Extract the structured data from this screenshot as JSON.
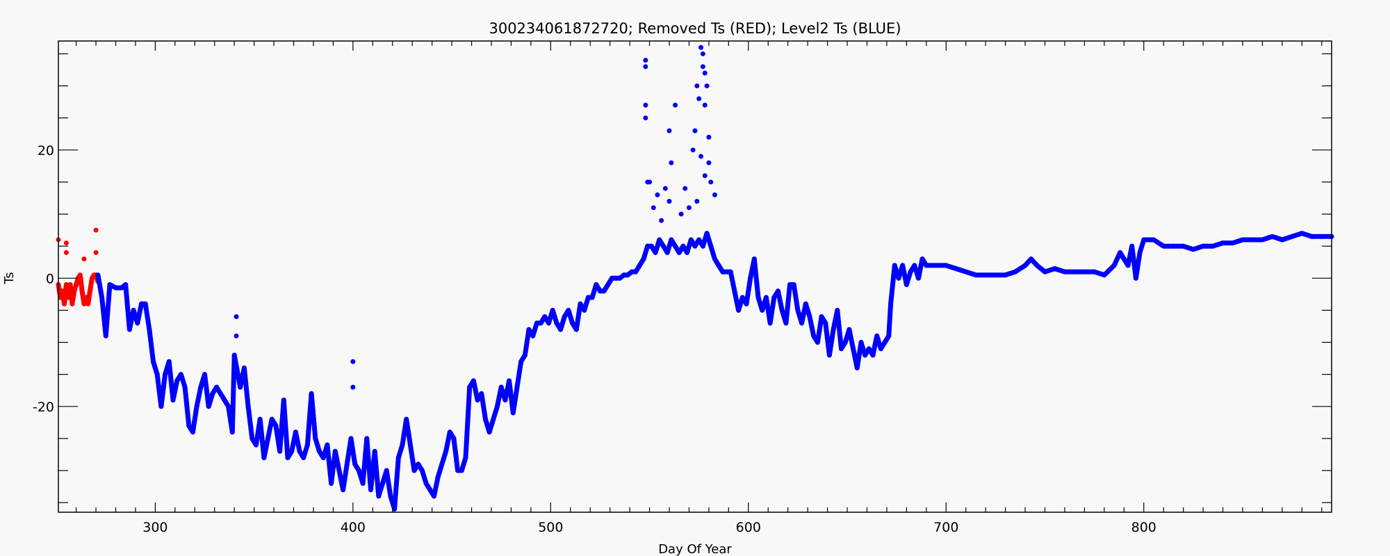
{
  "chart_data": {
    "type": "scatter",
    "title": "300234061872720; Removed Ts (RED); Level2 Ts (BLUE)",
    "xlabel": "Day Of Year",
    "ylabel": "Ts",
    "xlim": [
      251,
      895
    ],
    "ylim": [
      -36.5,
      37
    ],
    "x_ticks": [
      300,
      400,
      500,
      600,
      700,
      800
    ],
    "x_tick_labels": [
      "300",
      "400",
      "500",
      "600",
      "700",
      "800"
    ],
    "y_ticks": [
      -20,
      0,
      20
    ],
    "y_tick_labels": [
      "-20",
      "0",
      "20"
    ],
    "grid": false,
    "legend": "none",
    "colors": {
      "removed": "#ff0000",
      "level2": "#0000ff",
      "axes": "#000000",
      "background": "#f8f8f8"
    },
    "series": [
      {
        "key": "removed",
        "color": "#ff0000",
        "points": [
          [
            251,
            -1
          ],
          [
            252,
            -3
          ],
          [
            253,
            -2
          ],
          [
            254,
            -4
          ],
          [
            255,
            -1
          ],
          [
            256,
            -3
          ],
          [
            257,
            -1
          ],
          [
            258,
            -4
          ],
          [
            259,
            -2
          ],
          [
            260,
            -1
          ],
          [
            261,
            0
          ],
          [
            262,
            0.5
          ],
          [
            263,
            -2
          ],
          [
            264,
            -4
          ],
          [
            265,
            -3
          ],
          [
            266,
            -4
          ],
          [
            267,
            -2
          ],
          [
            268,
            0
          ],
          [
            269,
            0.5
          ],
          [
            270,
            0.5
          ],
          [
            271,
            -0.5
          ]
        ],
        "outliers": [
          [
            251,
            6
          ],
          [
            255,
            5.5
          ],
          [
            255,
            4
          ],
          [
            264,
            3
          ],
          [
            270,
            7.5
          ],
          [
            270,
            4
          ]
        ]
      },
      {
        "key": "level2",
        "color": "#0000ff",
        "points": [
          [
            271,
            0.5
          ],
          [
            273,
            -3
          ],
          [
            275,
            -9
          ],
          [
            277,
            -1
          ],
          [
            280,
            -1.5
          ],
          [
            283,
            -1.5
          ],
          [
            285,
            -1
          ],
          [
            287,
            -8
          ],
          [
            289,
            -5
          ],
          [
            291,
            -7
          ],
          [
            293,
            -4
          ],
          [
            295,
            -4
          ],
          [
            297,
            -8
          ],
          [
            299,
            -13
          ],
          [
            301,
            -15
          ],
          [
            303,
            -20
          ],
          [
            305,
            -15
          ],
          [
            307,
            -13
          ],
          [
            309,
            -19
          ],
          [
            311,
            -16
          ],
          [
            313,
            -15
          ],
          [
            315,
            -17
          ],
          [
            317,
            -23
          ],
          [
            319,
            -24
          ],
          [
            321,
            -20
          ],
          [
            323,
            -17
          ],
          [
            325,
            -15
          ],
          [
            327,
            -20
          ],
          [
            329,
            -18
          ],
          [
            331,
            -17
          ],
          [
            333,
            -18
          ],
          [
            335,
            -19
          ],
          [
            337,
            -20
          ],
          [
            339,
            -24
          ],
          [
            340,
            -12
          ],
          [
            343,
            -17
          ],
          [
            345,
            -14
          ],
          [
            347,
            -20
          ],
          [
            349,
            -25
          ],
          [
            351,
            -26
          ],
          [
            353,
            -22
          ],
          [
            355,
            -28
          ],
          [
            357,
            -25
          ],
          [
            359,
            -22
          ],
          [
            361,
            -23
          ],
          [
            363,
            -27
          ],
          [
            365,
            -19
          ],
          [
            367,
            -28
          ],
          [
            369,
            -27
          ],
          [
            371,
            -24
          ],
          [
            373,
            -27
          ],
          [
            375,
            -28
          ],
          [
            377,
            -26
          ],
          [
            379,
            -18
          ],
          [
            381,
            -25
          ],
          [
            383,
            -27
          ],
          [
            385,
            -28
          ],
          [
            387,
            -26
          ],
          [
            389,
            -32
          ],
          [
            391,
            -27
          ],
          [
            393,
            -30
          ],
          [
            395,
            -33
          ],
          [
            397,
            -29
          ],
          [
            399,
            -25
          ],
          [
            401,
            -29
          ],
          [
            403,
            -30
          ],
          [
            405,
            -32
          ],
          [
            407,
            -25
          ],
          [
            409,
            -33
          ],
          [
            411,
            -27
          ],
          [
            413,
            -34
          ],
          [
            415,
            -32
          ],
          [
            417,
            -30
          ],
          [
            419,
            -34
          ],
          [
            421,
            -36
          ],
          [
            423,
            -28
          ],
          [
            425,
            -26
          ],
          [
            427,
            -22
          ],
          [
            429,
            -26
          ],
          [
            431,
            -30
          ],
          [
            433,
            -29
          ],
          [
            435,
            -30
          ],
          [
            437,
            -32
          ],
          [
            439,
            -33
          ],
          [
            441,
            -34
          ],
          [
            443,
            -31
          ],
          [
            445,
            -29
          ],
          [
            447,
            -27
          ],
          [
            449,
            -24
          ],
          [
            451,
            -25
          ],
          [
            453,
            -30
          ],
          [
            455,
            -30
          ],
          [
            457,
            -28
          ],
          [
            459,
            -17
          ],
          [
            461,
            -16
          ],
          [
            463,
            -19
          ],
          [
            465,
            -18
          ],
          [
            467,
            -22
          ],
          [
            469,
            -24
          ],
          [
            471,
            -22
          ],
          [
            473,
            -20
          ],
          [
            475,
            -17
          ],
          [
            477,
            -19
          ],
          [
            479,
            -16
          ],
          [
            481,
            -21
          ],
          [
            483,
            -17
          ],
          [
            485,
            -13
          ],
          [
            487,
            -12
          ],
          [
            489,
            -8
          ],
          [
            491,
            -9
          ],
          [
            493,
            -7
          ],
          [
            495,
            -7
          ],
          [
            497,
            -6
          ],
          [
            499,
            -7
          ],
          [
            501,
            -5
          ],
          [
            503,
            -7
          ],
          [
            505,
            -8
          ],
          [
            507,
            -6
          ],
          [
            509,
            -5
          ],
          [
            511,
            -7
          ],
          [
            513,
            -8
          ],
          [
            515,
            -4
          ],
          [
            517,
            -5
          ],
          [
            519,
            -3
          ],
          [
            521,
            -3
          ],
          [
            523,
            -1
          ],
          [
            525,
            -2
          ],
          [
            527,
            -2
          ],
          [
            529,
            -1
          ],
          [
            531,
            0
          ],
          [
            533,
            0
          ],
          [
            535,
            0
          ],
          [
            537,
            0.5
          ],
          [
            539,
            0.5
          ],
          [
            541,
            1
          ],
          [
            543,
            1
          ],
          [
            545,
            2
          ],
          [
            547,
            3
          ],
          [
            549,
            5
          ],
          [
            551,
            5
          ],
          [
            553,
            4
          ],
          [
            555,
            6
          ],
          [
            557,
            5
          ],
          [
            559,
            4
          ],
          [
            561,
            6
          ],
          [
            563,
            5
          ],
          [
            565,
            4
          ],
          [
            567,
            5
          ],
          [
            569,
            4
          ],
          [
            571,
            6
          ],
          [
            573,
            5
          ],
          [
            575,
            6
          ],
          [
            577,
            5
          ],
          [
            579,
            7
          ],
          [
            581,
            5
          ],
          [
            583,
            3
          ],
          [
            585,
            2
          ],
          [
            587,
            1
          ],
          [
            589,
            1
          ],
          [
            591,
            1
          ],
          [
            593,
            -2
          ],
          [
            595,
            -5
          ],
          [
            597,
            -3
          ],
          [
            599,
            -4
          ],
          [
            601,
            0
          ],
          [
            603,
            3
          ],
          [
            605,
            -3
          ],
          [
            607,
            -5
          ],
          [
            609,
            -3
          ],
          [
            611,
            -7
          ],
          [
            613,
            -3
          ],
          [
            615,
            -2
          ],
          [
            617,
            -5
          ],
          [
            619,
            -7
          ],
          [
            621,
            -1
          ],
          [
            623,
            -1
          ],
          [
            625,
            -5
          ],
          [
            627,
            -7
          ],
          [
            629,
            -4
          ],
          [
            631,
            -6
          ],
          [
            633,
            -9
          ],
          [
            635,
            -10
          ],
          [
            637,
            -6
          ],
          [
            639,
            -7
          ],
          [
            641,
            -12
          ],
          [
            643,
            -8
          ],
          [
            645,
            -5
          ],
          [
            647,
            -11
          ],
          [
            649,
            -10
          ],
          [
            651,
            -8
          ],
          [
            653,
            -11
          ],
          [
            655,
            -14
          ],
          [
            657,
            -10
          ],
          [
            659,
            -12
          ],
          [
            661,
            -11
          ],
          [
            663,
            -12
          ],
          [
            665,
            -9
          ],
          [
            667,
            -11
          ],
          [
            669,
            -10
          ],
          [
            671,
            -9
          ],
          [
            672,
            -4
          ],
          [
            674,
            2
          ],
          [
            676,
            0
          ],
          [
            678,
            2
          ],
          [
            680,
            -1
          ],
          [
            682,
            1
          ],
          [
            684,
            2
          ],
          [
            686,
            0
          ],
          [
            688,
            3
          ],
          [
            690,
            2
          ],
          [
            695,
            2
          ],
          [
            700,
            2
          ],
          [
            705,
            1.5
          ],
          [
            710,
            1
          ],
          [
            715,
            0.5
          ],
          [
            720,
            0.5
          ],
          [
            725,
            0.5
          ],
          [
            730,
            0.5
          ],
          [
            735,
            1
          ],
          [
            740,
            2
          ],
          [
            743,
            3
          ],
          [
            746,
            2
          ],
          [
            750,
            1
          ],
          [
            755,
            1.5
          ],
          [
            760,
            1
          ],
          [
            765,
            1
          ],
          [
            770,
            1
          ],
          [
            775,
            1
          ],
          [
            780,
            0.5
          ],
          [
            785,
            2
          ],
          [
            788,
            4
          ],
          [
            790,
            3
          ],
          [
            792,
            2
          ],
          [
            794,
            5
          ],
          [
            796,
            0
          ],
          [
            798,
            4
          ],
          [
            800,
            6
          ],
          [
            805,
            6
          ],
          [
            810,
            5
          ],
          [
            815,
            5
          ],
          [
            820,
            5
          ],
          [
            825,
            4.5
          ],
          [
            830,
            5
          ],
          [
            835,
            5
          ],
          [
            840,
            5.5
          ],
          [
            845,
            5.5
          ],
          [
            850,
            6
          ],
          [
            855,
            6
          ],
          [
            860,
            6
          ],
          [
            865,
            6.5
          ],
          [
            870,
            6
          ],
          [
            875,
            6.5
          ],
          [
            880,
            7
          ],
          [
            885,
            6.5
          ],
          [
            890,
            6.5
          ],
          [
            895,
            6.5
          ]
        ],
        "outliers": [
          [
            341,
            -6
          ],
          [
            341,
            -9
          ],
          [
            400,
            -13
          ],
          [
            400,
            -17
          ],
          [
            548,
            34
          ],
          [
            548,
            33
          ],
          [
            548,
            27
          ],
          [
            548,
            25
          ],
          [
            549,
            15
          ],
          [
            550,
            15
          ],
          [
            552,
            11
          ],
          [
            554,
            13
          ],
          [
            556,
            9
          ],
          [
            558,
            14
          ],
          [
            560,
            12
          ],
          [
            560,
            23
          ],
          [
            561,
            18
          ],
          [
            563,
            27
          ],
          [
            566,
            10
          ],
          [
            568,
            14
          ],
          [
            570,
            11
          ],
          [
            572,
            20
          ],
          [
            573,
            23
          ],
          [
            574,
            30
          ],
          [
            575,
            28
          ],
          [
            576,
            36
          ],
          [
            577,
            35
          ],
          [
            577,
            33
          ],
          [
            578,
            32
          ],
          [
            579,
            30
          ],
          [
            578,
            27
          ],
          [
            580,
            22
          ],
          [
            580,
            18
          ],
          [
            578,
            16
          ],
          [
            581,
            15
          ],
          [
            583,
            13
          ],
          [
            576,
            19
          ],
          [
            574,
            12
          ]
        ]
      }
    ]
  }
}
